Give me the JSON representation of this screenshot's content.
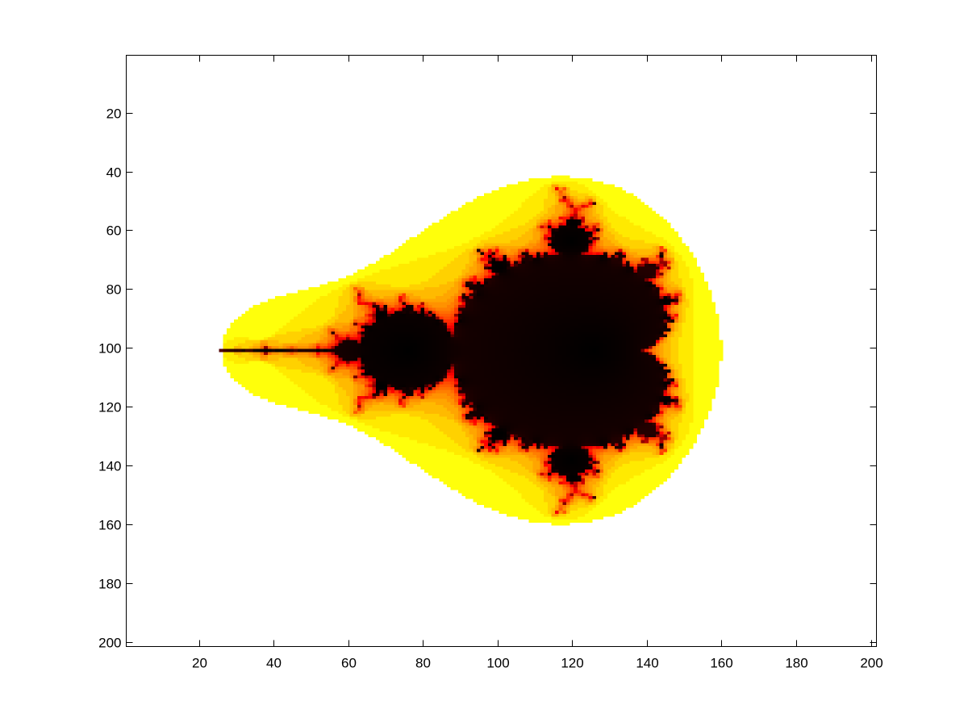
{
  "chart_data": {
    "type": "heatmap",
    "title": "",
    "xlabel": "",
    "ylabel": "",
    "grid": false,
    "colormap": "hot",
    "colormap_stops": [
      "#000000",
      "#800000",
      "#ff0000",
      "#ff8000",
      "#ffff00",
      "#ffffff"
    ],
    "image_size": [
      201,
      201
    ],
    "xlim": [
      0.5,
      201.5
    ],
    "ylim": [
      0.5,
      201.5
    ],
    "y_direction": "reverse",
    "complex_plane": {
      "re_range": [
        -2.5,
        1.5
      ],
      "im_range": [
        -2.0,
        2.0
      ]
    },
    "max_iterations": 30,
    "xticks": [
      20,
      40,
      60,
      80,
      100,
      120,
      140,
      160,
      180,
      200
    ],
    "yticks": [
      20,
      40,
      60,
      80,
      100,
      120,
      140,
      160,
      180,
      200
    ],
    "xtick_labels": [
      "20",
      "40",
      "60",
      "80",
      "100",
      "120",
      "140",
      "160",
      "180",
      "200"
    ],
    "ytick_labels": [
      "20",
      "40",
      "60",
      "80",
      "100",
      "120",
      "140",
      "160",
      "180",
      "200"
    ]
  }
}
